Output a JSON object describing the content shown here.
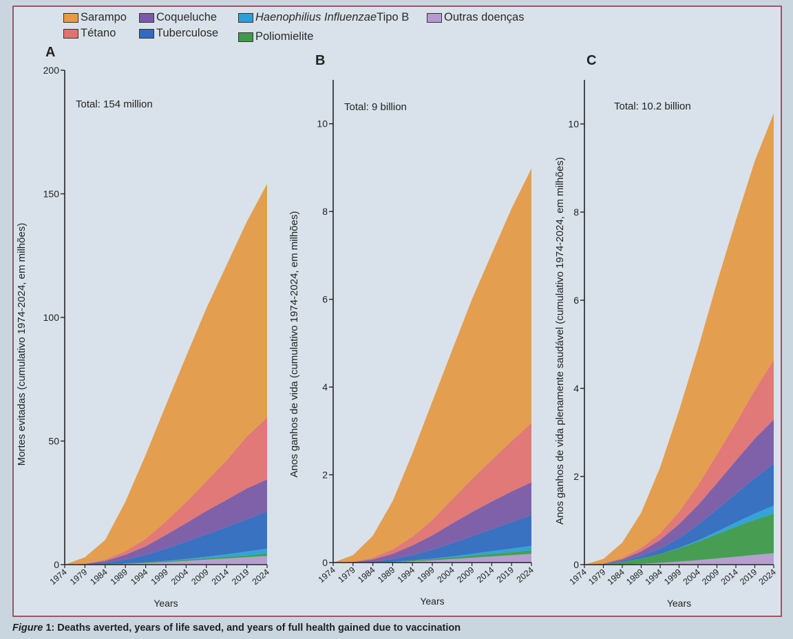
{
  "legend": [
    {
      "name": "Sarampo",
      "color": "#e59a47"
    },
    {
      "name": "Coqueluche",
      "color": "#7a5aa6"
    },
    {
      "name_italic": "Haenophilius Influenzae",
      "name": " Tipo B",
      "color": "#2aa0d8"
    },
    {
      "name": "Outras doenças",
      "color": "#b59ad0"
    },
    {
      "name": "Tétano",
      "color": "#e07372"
    },
    {
      "name": "Tuberculose",
      "color": "#2f6cbf"
    },
    {
      "name": "Poliomielite",
      "color": "#3f9a4a"
    }
  ],
  "caption": {
    "label": "Figure",
    "text": " 1: Deaths averted, years of life saved, and years of full health gained due to vaccination"
  },
  "chart_data": [
    {
      "type": "area",
      "panel": "A",
      "total": "Total: 154 million",
      "ylabel": "Mortes evitadas (cumulativo 1974-2024, em milhões)",
      "xlabel": "Years",
      "ylim": [
        0,
        200
      ],
      "yticks": [
        "0",
        "50",
        "100",
        "150",
        "200"
      ],
      "xticks": [
        "1974",
        "1979",
        "1984",
        "1989",
        "1994",
        "1999",
        "2004",
        "2009",
        "2014",
        "2019",
        "2024"
      ],
      "x": [
        1974,
        1979,
        1984,
        1989,
        1994,
        1999,
        2004,
        2009,
        2014,
        2019,
        2024
      ],
      "series": [
        {
          "name": "Outras doenças",
          "values": [
            0,
            0,
            0.1,
            0.3,
            0.6,
            1,
            1.5,
            2,
            2.5,
            3,
            3.5
          ]
        },
        {
          "name": "Poliomielite",
          "values": [
            0,
            0,
            0.1,
            0.2,
            0.3,
            0.4,
            0.5,
            0.6,
            0.7,
            0.8,
            1
          ]
        },
        {
          "name": "Haenophilius Influenzae Tipo B",
          "values": [
            0,
            0,
            0,
            0,
            0,
            0.1,
            0.3,
            0.6,
            1,
            1.5,
            2
          ]
        },
        {
          "name": "Tuberculose",
          "values": [
            0,
            0.1,
            0.5,
            1.5,
            3,
            5,
            7,
            9,
            11,
            13,
            15
          ]
        },
        {
          "name": "Coqueluche",
          "values": [
            0,
            0.2,
            0.8,
            2,
            3.5,
            5.5,
            7.5,
            9.5,
            11,
            12.5,
            13
          ]
        },
        {
          "name": "Tétano",
          "values": [
            0,
            0.1,
            0.5,
            1.5,
            3,
            5.5,
            8.5,
            12,
            16,
            21,
            25
          ]
        },
        {
          "name": "Sarampo",
          "values": [
            0,
            2.6,
            8,
            20,
            34,
            47,
            59,
            70,
            79,
            87,
            94.5
          ]
        }
      ]
    },
    {
      "type": "area",
      "panel": "B",
      "total": "Total: 9 billion",
      "ylabel": "Anos ganhos de vida (cumulativo 1974-2024, em milhões)",
      "xlabel": "Years",
      "ylim": [
        0,
        11
      ],
      "yticks": [
        "0",
        "2",
        "4",
        "6",
        "8",
        "10"
      ],
      "xticks": [
        "1974",
        "1979",
        "1984",
        "1989",
        "1994",
        "1999",
        "2004",
        "2009",
        "2014",
        "2019",
        "2024"
      ],
      "x": [
        1974,
        1979,
        1984,
        1989,
        1994,
        1999,
        2004,
        2009,
        2014,
        2019,
        2024
      ],
      "series": [
        {
          "name": "Outras doenças",
          "values": [
            0,
            0,
            0,
            0.01,
            0.03,
            0.05,
            0.08,
            0.11,
            0.14,
            0.17,
            0.2
          ]
        },
        {
          "name": "Poliomielite",
          "values": [
            0,
            0,
            0,
            0.01,
            0.02,
            0.03,
            0.04,
            0.05,
            0.06,
            0.07,
            0.08
          ]
        },
        {
          "name": "Haenophilius Influenzae Tipo B",
          "values": [
            0,
            0,
            0,
            0,
            0,
            0.01,
            0.02,
            0.04,
            0.06,
            0.08,
            0.1
          ]
        },
        {
          "name": "Tuberculose",
          "values": [
            0,
            0,
            0.02,
            0.06,
            0.12,
            0.2,
            0.3,
            0.4,
            0.5,
            0.6,
            0.7
          ]
        },
        {
          "name": "Coqueluche",
          "values": [
            0,
            0.01,
            0.05,
            0.12,
            0.22,
            0.33,
            0.45,
            0.55,
            0.63,
            0.7,
            0.75
          ]
        },
        {
          "name": "Tétano",
          "values": [
            0,
            0.01,
            0.04,
            0.1,
            0.2,
            0.35,
            0.55,
            0.75,
            0.95,
            1.15,
            1.35
          ]
        },
        {
          "name": "Sarampo",
          "values": [
            0,
            0.15,
            0.5,
            1.1,
            1.9,
            2.7,
            3.4,
            4.1,
            4.7,
            5.3,
            5.8
          ]
        }
      ]
    },
    {
      "type": "area",
      "panel": "C",
      "total": "Total: 10.2 billion",
      "ylabel": "Anos ganhos de vida plenamente saudável (cumulativo 1974-2024, em milhões)",
      "xlabel": "Years",
      "ylim": [
        0,
        11
      ],
      "yticks": [
        "0",
        "2",
        "4",
        "6",
        "8",
        "10"
      ],
      "xticks": [
        "1974",
        "1979",
        "1984",
        "1989",
        "1994",
        "1999",
        "2004",
        "2009",
        "2014",
        "2019",
        "2024"
      ],
      "x": [
        1974,
        1979,
        1984,
        1989,
        1994,
        1999,
        2004,
        2009,
        2014,
        2019,
        2024
      ],
      "series": [
        {
          "name": "Outras doenças",
          "values": [
            0,
            0,
            0.01,
            0.02,
            0.04,
            0.07,
            0.1,
            0.14,
            0.18,
            0.22,
            0.26
          ]
        },
        {
          "name": "Poliomielite",
          "values": [
            0,
            0.01,
            0.05,
            0.12,
            0.2,
            0.3,
            0.42,
            0.55,
            0.68,
            0.8,
            0.9
          ]
        },
        {
          "name": "Haenophilius Influenzae Tipo B",
          "values": [
            0,
            0,
            0,
            0,
            0,
            0.01,
            0.03,
            0.06,
            0.1,
            0.14,
            0.18
          ]
        },
        {
          "name": "Tuberculose",
          "values": [
            0,
            0,
            0.02,
            0.06,
            0.12,
            0.22,
            0.35,
            0.5,
            0.65,
            0.8,
            0.95
          ]
        },
        {
          "name": "Coqueluche",
          "values": [
            0,
            0.01,
            0.04,
            0.1,
            0.2,
            0.32,
            0.45,
            0.6,
            0.75,
            0.9,
            1.0
          ]
        },
        {
          "name": "Tétano",
          "values": [
            0,
            0.01,
            0.03,
            0.08,
            0.15,
            0.28,
            0.45,
            0.65,
            0.85,
            1.1,
            1.35
          ]
        },
        {
          "name": "Sarampo",
          "values": [
            0,
            0.1,
            0.35,
            0.8,
            1.5,
            2.3,
            3.1,
            3.9,
            4.6,
            5.2,
            5.6
          ]
        }
      ]
    }
  ]
}
